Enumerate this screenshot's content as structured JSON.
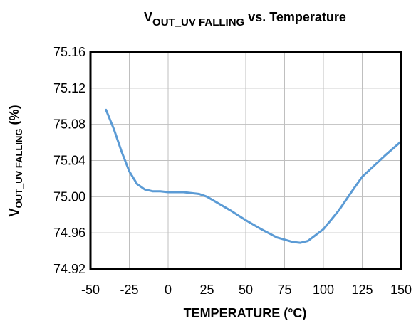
{
  "chart_data": {
    "type": "line",
    "title": {
      "main": "V",
      "sub": "OUT_UV FALLING",
      "rest": " vs. Temperature"
    },
    "x_label": "TEMPERATURE (°C)",
    "y_label": {
      "main": "V",
      "sub": "OUT_UV FALLING",
      "rest": " (%)"
    },
    "x": [
      -40,
      -35,
      -30,
      -25,
      -20,
      -15,
      -10,
      -5,
      0,
      5,
      10,
      15,
      20,
      25,
      30,
      40,
      50,
      60,
      70,
      80,
      85,
      90,
      100,
      110,
      120,
      125,
      130,
      140,
      150
    ],
    "values": [
      75.096,
      75.075,
      75.05,
      75.028,
      75.014,
      75.008,
      75.006,
      75.006,
      75.005,
      75.005,
      75.005,
      75.004,
      75.003,
      75.0,
      74.995,
      74.985,
      74.974,
      74.964,
      74.955,
      74.95,
      74.949,
      74.951,
      74.964,
      74.985,
      75.01,
      75.022,
      75.03,
      75.046,
      75.061
    ],
    "color": "#5b9bd5",
    "xlim": [
      -50,
      150
    ],
    "xticks": [
      -50,
      -25,
      0,
      25,
      50,
      75,
      100,
      125,
      150
    ],
    "ylim": [
      74.92,
      75.16
    ],
    "yticks": [
      74.92,
      74.96,
      {
        "value": 75,
        "label": "75.00"
      },
      75.04,
      75.08,
      75.12,
      75.16
    ],
    "grid": true
  }
}
